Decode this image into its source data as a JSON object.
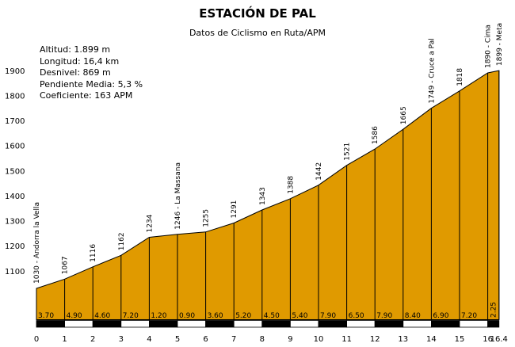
{
  "stats": {
    "altitud": "Altitud: 1.899 m",
    "longitud": "Longitud: 16,4 km",
    "desnivel": "Desnivel: 869 m",
    "pendiente": "Pendiente Media: 5,3 %",
    "coeficiente": "Coeficiente: 163 APM"
  },
  "colors": {
    "fill": "#e09a00",
    "line": "#000000",
    "bar_dark": "#000000",
    "bar_light": "#ffffff"
  },
  "chart_data": {
    "type": "area",
    "title": "ESTACIÓN DE PAL",
    "subtitle": "Datos de Ciclismo en Ruta/APM",
    "xlabel": "",
    "ylabel": "",
    "xlim": [
      0,
      16.4
    ],
    "ylim": [
      1000,
      1900
    ],
    "x_ticks": [
      "0",
      "1",
      "2",
      "3",
      "4",
      "5",
      "6",
      "7",
      "8",
      "9",
      "10",
      "11",
      "12",
      "13",
      "14",
      "15",
      "16",
      "16.4"
    ],
    "y_ticks": [
      "1100",
      "1200",
      "1300",
      "1400",
      "1500",
      "1600",
      "1700",
      "1800",
      "1900"
    ],
    "grid": false,
    "points": [
      {
        "x": 0,
        "y": 1030,
        "label": "1030 - Andorra la Vella"
      },
      {
        "x": 1,
        "y": 1067,
        "label": "1067"
      },
      {
        "x": 2,
        "y": 1116,
        "label": "1116"
      },
      {
        "x": 3,
        "y": 1162,
        "label": "1162"
      },
      {
        "x": 4,
        "y": 1234,
        "label": "1234"
      },
      {
        "x": 5,
        "y": 1246,
        "label": "1246 - La Massana"
      },
      {
        "x": 6,
        "y": 1255,
        "label": "1255"
      },
      {
        "x": 7,
        "y": 1291,
        "label": "1291"
      },
      {
        "x": 8,
        "y": 1343,
        "label": "1343"
      },
      {
        "x": 9,
        "y": 1388,
        "label": "1388"
      },
      {
        "x": 10,
        "y": 1442,
        "label": "1442"
      },
      {
        "x": 11,
        "y": 1521,
        "label": "1521"
      },
      {
        "x": 12,
        "y": 1586,
        "label": "1586"
      },
      {
        "x": 13,
        "y": 1665,
        "label": "1665"
      },
      {
        "x": 14,
        "y": 1749,
        "label": "1749 - Cruce a Pal"
      },
      {
        "x": 15,
        "y": 1818,
        "label": "1818"
      },
      {
        "x": 16,
        "y": 1890,
        "label": "1890 - Cima"
      },
      {
        "x": 16.4,
        "y": 1899,
        "label": "1899 - Meta"
      }
    ],
    "gradients": [
      "3.70",
      "4.90",
      "4.60",
      "7.20",
      "1.20",
      "0.90",
      "3.60",
      "5.20",
      "4.50",
      "5.40",
      "7.90",
      "6.50",
      "7.90",
      "8.40",
      "6.90",
      "7.20",
      "2.25"
    ]
  }
}
